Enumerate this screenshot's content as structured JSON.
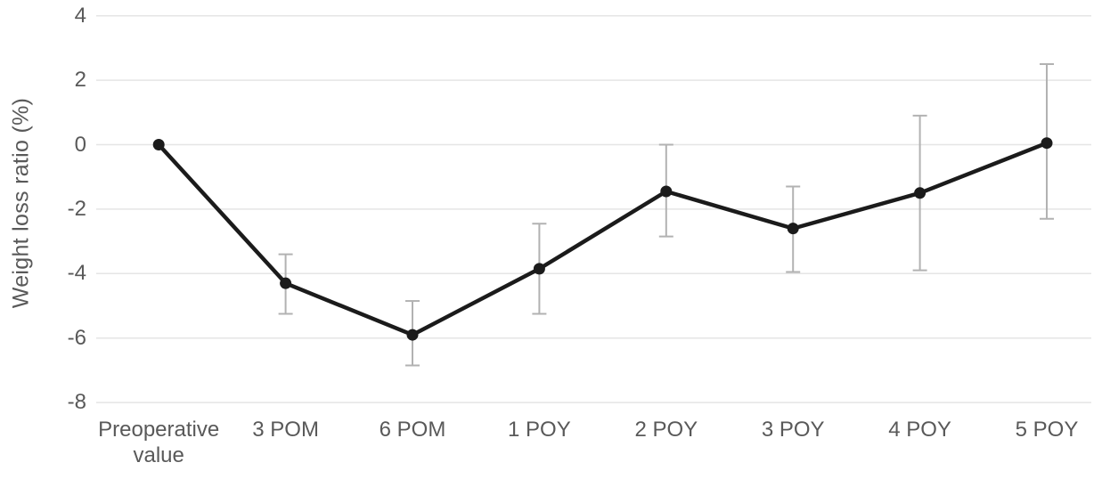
{
  "chart_data": {
    "type": "line",
    "title": "",
    "xlabel": "",
    "ylabel": "Weight loss ratio (%)",
    "categories": [
      "Preoperative value",
      "3 POM",
      "6 POM",
      "1 POY",
      "2 POY",
      "3 POY",
      "4 POY",
      "5 POY"
    ],
    "series": [
      {
        "name": "Weight loss ratio (%)",
        "values": [
          0,
          -4.3,
          -5.9,
          -3.85,
          -1.45,
          -2.6,
          -1.5,
          0.05
        ],
        "error_upper": [
          null,
          -3.4,
          -4.85,
          -2.45,
          0,
          -1.3,
          0.9,
          2.5
        ],
        "error_lower": [
          null,
          -5.25,
          -6.85,
          -5.25,
          -2.85,
          -3.95,
          -3.9,
          -2.3
        ]
      }
    ],
    "yticks": [
      4,
      2,
      0,
      -2,
      -4,
      -6,
      -8
    ],
    "ylim": [
      -8,
      4
    ],
    "grid": "horizontal-only",
    "legend": "none",
    "marker": "filled-circle",
    "colors": {
      "line": "#1b1b1b",
      "marker": "#1b1b1b",
      "error_bar": "#b2b2b2",
      "gridline": "#e5e5e5",
      "text": "#595959",
      "background": "#ffffff"
    }
  }
}
